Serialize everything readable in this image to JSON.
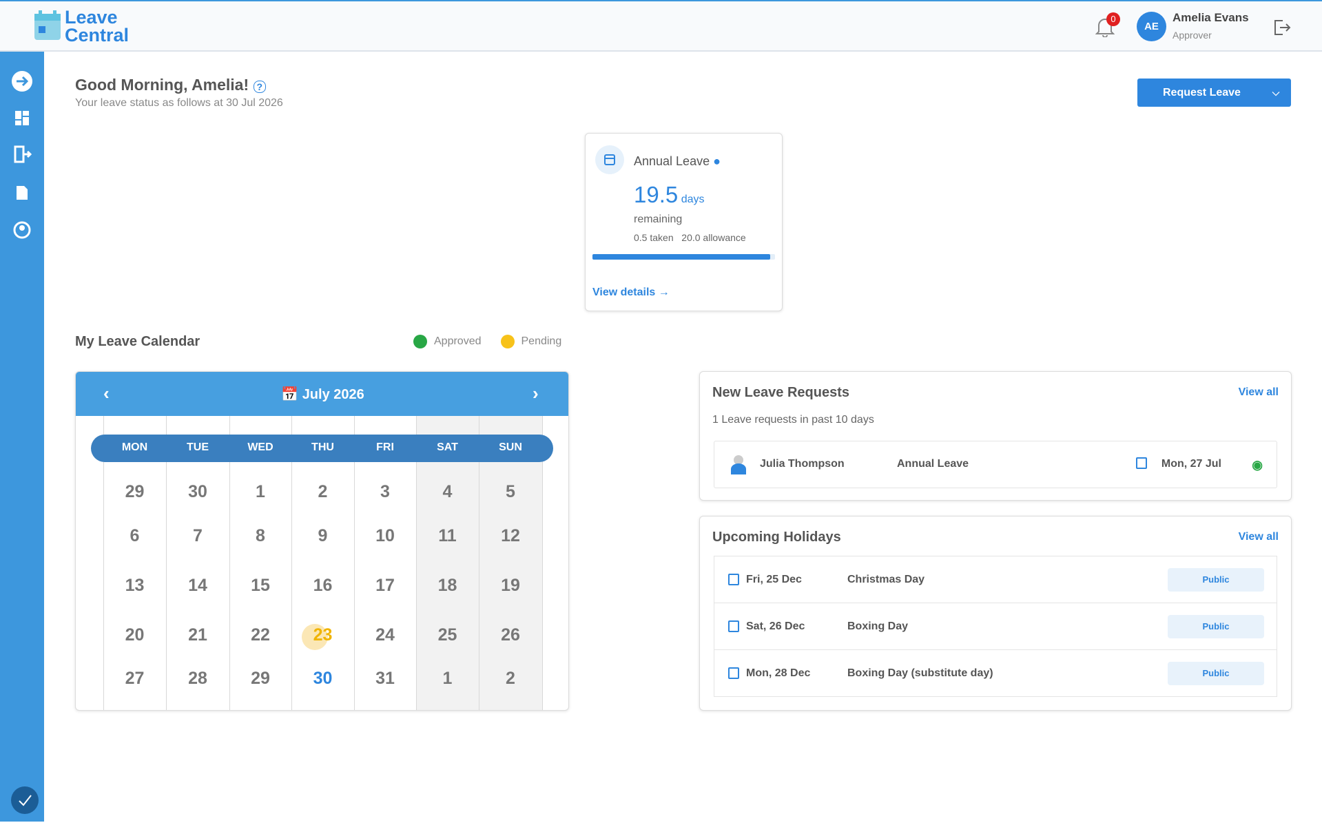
{
  "header": {
    "logo": [
      "Leave",
      "Central"
    ],
    "notifications": "0",
    "user": {
      "initials": "AE",
      "name": "Amelia Evans",
      "role": "Approver"
    }
  },
  "greeting": {
    "title": "Good Morning, Amelia!",
    "subtitle": "Your leave status as follows at 30 Jul 2026"
  },
  "request_button": "Request Leave",
  "leave_card": {
    "title": "Annual Leave",
    "remaining": 19.5,
    "unit": "days",
    "remaining_label": "remaining",
    "taken": "0.5 taken",
    "allowance": "20.0 allowance",
    "link": "View details"
  },
  "calendar": {
    "title": "My Leave Calendar",
    "legend": [
      {
        "label": "Approved",
        "color": "#28a745"
      },
      {
        "label": "Pending",
        "color": "#f7c21a"
      }
    ],
    "month": "July 2026",
    "weekdays": [
      "MON",
      "TUE",
      "WED",
      "THU",
      "FRI",
      "SAT",
      "SUN"
    ],
    "weeks": [
      [
        29,
        30,
        1,
        2,
        3,
        4,
        5
      ],
      [
        6,
        7,
        8,
        9,
        10,
        11,
        12
      ],
      [
        13,
        14,
        15,
        16,
        17,
        18,
        19
      ],
      [
        20,
        21,
        22,
        {
          "day": 23,
          "status": "pending"
        },
        24,
        25,
        26
      ],
      [
        27,
        28,
        29,
        {
          "day": 30,
          "status": "today"
        },
        31,
        1,
        2
      ]
    ]
  },
  "new_requests": {
    "title": "New Leave Requests",
    "view_all": "View all",
    "subtitle": "1 Leave requests in past 10 days",
    "rows": [
      {
        "name": "Julia Thompson",
        "type": "Annual Leave",
        "date": "Mon, 27 Jul"
      }
    ]
  },
  "holidays": {
    "title": "Upcoming Holidays",
    "view_all": "View all",
    "rows": [
      {
        "date": "Fri, 25 Dec",
        "name": "Christmas Day",
        "tag": "Public"
      },
      {
        "date": "Sat, 26 Dec",
        "name": "Boxing Day",
        "tag": "Public"
      },
      {
        "date": "Mon, 28 Dec",
        "name": "Boxing Day (substitute day)",
        "tag": "Public"
      }
    ]
  }
}
